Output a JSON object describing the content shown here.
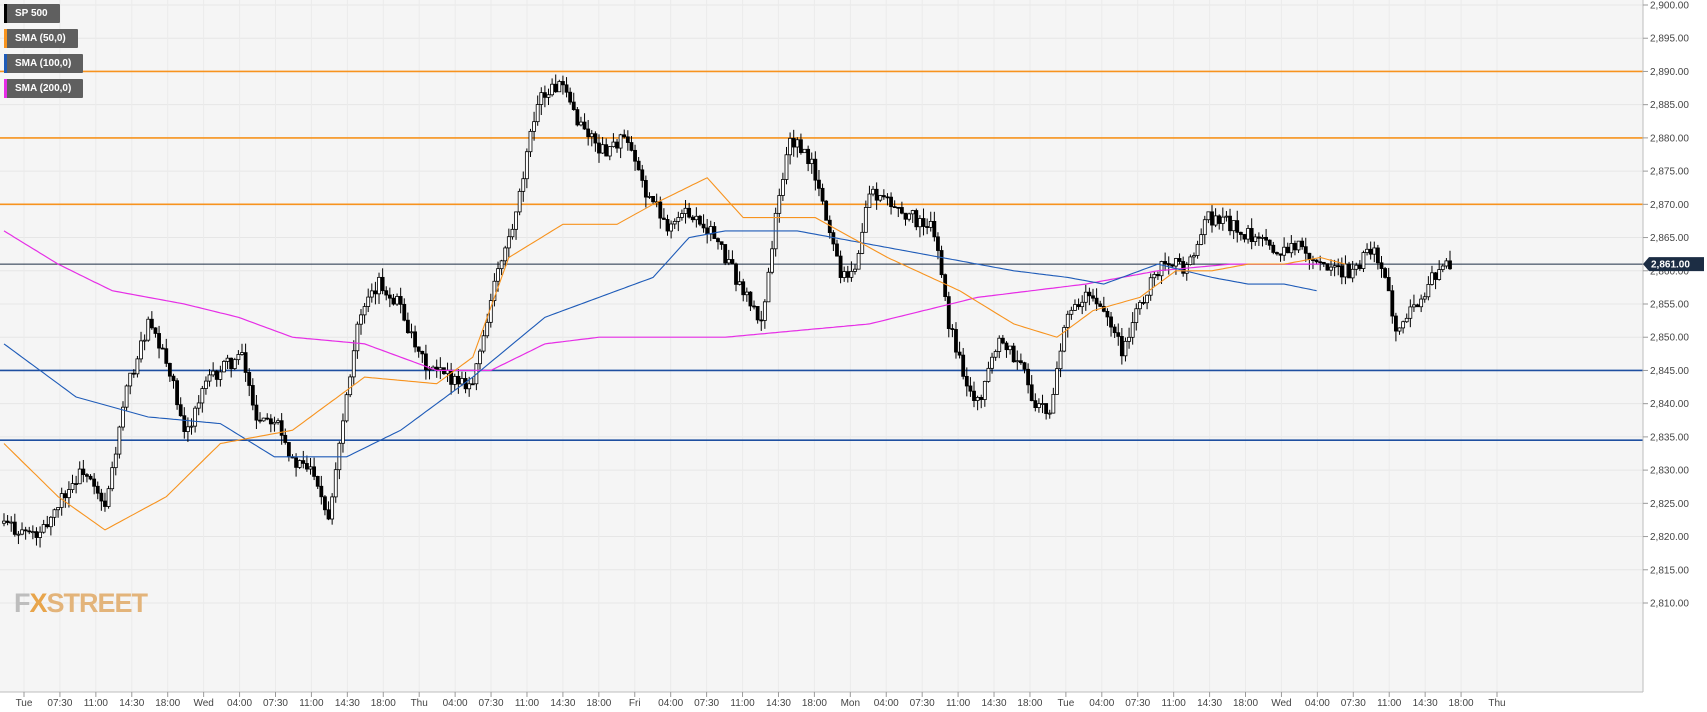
{
  "legend": [
    {
      "label": "SP 500",
      "color": "#000000"
    },
    {
      "label": "SMA (50,0)",
      "color": "#f7931e"
    },
    {
      "label": "SMA (100,0)",
      "color": "#1e5bb8"
    },
    {
      "label": "SMA (200,0)",
      "color": "#e62ee6"
    }
  ],
  "logo": {
    "fx": "F",
    "x": "X",
    "rest": "STREET"
  },
  "price_badge": "2,861.00",
  "chart_data": {
    "type": "candlestick",
    "title": "",
    "xlabel": "",
    "ylabel": "",
    "ylim": [
      2805,
      2900
    ],
    "y_ticks": [
      "2,810.00",
      "2,815.00",
      "2,820.00",
      "2,825.00",
      "2,830.00",
      "2,835.00",
      "2,840.00",
      "2,845.00",
      "2,850.00",
      "2,855.00",
      "2,860.00",
      "2,865.00",
      "2,870.00",
      "2,875.00",
      "2,880.00",
      "2,885.00",
      "2,890.00",
      "2,895.00",
      "2,900.00"
    ],
    "x_ticks": [
      "Tue",
      "07:30",
      "11:00",
      "14:30",
      "18:00",
      "Wed",
      "04:00",
      "07:30",
      "11:00",
      "14:30",
      "18:00",
      "Thu",
      "04:00",
      "07:30",
      "11:00",
      "14:30",
      "18:00",
      "Fri",
      "04:00",
      "07:30",
      "11:00",
      "14:30",
      "18:00",
      "Mon",
      "04:00",
      "07:30",
      "11:00",
      "14:30",
      "18:00",
      "Tue",
      "04:00",
      "07:30",
      "11:00",
      "14:30",
      "18:00",
      "Wed",
      "04:00",
      "07:30",
      "11:00",
      "14:30",
      "18:00",
      "Thu"
    ],
    "current_price": 2861.0,
    "horizontal_levels": [
      {
        "value": 2890,
        "color": "#f7931e"
      },
      {
        "value": 2880,
        "color": "#f7931e"
      },
      {
        "value": 2870,
        "color": "#f7931e"
      },
      {
        "value": 2845,
        "color": "#1e4fa0"
      },
      {
        "value": 2834.5,
        "color": "#1e4fa0"
      }
    ],
    "close_anchors": [
      [
        0,
        2822
      ],
      [
        4,
        2821
      ],
      [
        10,
        2820
      ],
      [
        16,
        2826
      ],
      [
        22,
        2830
      ],
      [
        28,
        2824
      ],
      [
        34,
        2842
      ],
      [
        40,
        2852
      ],
      [
        46,
        2845
      ],
      [
        50,
        2835
      ],
      [
        56,
        2843
      ],
      [
        62,
        2846
      ],
      [
        66,
        2847
      ],
      [
        70,
        2838
      ],
      [
        76,
        2838
      ],
      [
        80,
        2831
      ],
      [
        86,
        2830
      ],
      [
        90,
        2823
      ],
      [
        94,
        2838
      ],
      [
        98,
        2852
      ],
      [
        104,
        2858
      ],
      [
        110,
        2855
      ],
      [
        114,
        2848
      ],
      [
        118,
        2845
      ],
      [
        124,
        2844
      ],
      [
        130,
        2843
      ],
      [
        136,
        2858
      ],
      [
        142,
        2868
      ],
      [
        148,
        2886
      ],
      [
        154,
        2888
      ],
      [
        160,
        2882
      ],
      [
        166,
        2878
      ],
      [
        172,
        2880
      ],
      [
        178,
        2872
      ],
      [
        184,
        2867
      ],
      [
        190,
        2869
      ],
      [
        196,
        2866
      ],
      [
        200,
        2862
      ],
      [
        204,
        2858
      ],
      [
        210,
        2852
      ],
      [
        214,
        2868
      ],
      [
        218,
        2880
      ],
      [
        224,
        2876
      ],
      [
        228,
        2868
      ],
      [
        232,
        2860
      ],
      [
        236,
        2860
      ],
      [
        240,
        2872
      ],
      [
        246,
        2870
      ],
      [
        252,
        2868
      ],
      [
        258,
        2866
      ],
      [
        262,
        2852
      ],
      [
        266,
        2845
      ],
      [
        270,
        2840
      ],
      [
        276,
        2850
      ],
      [
        282,
        2846
      ],
      [
        286,
        2840
      ],
      [
        290,
        2838
      ],
      [
        294,
        2852
      ],
      [
        300,
        2856
      ],
      [
        306,
        2854
      ],
      [
        310,
        2848
      ],
      [
        316,
        2856
      ],
      [
        322,
        2862
      ],
      [
        328,
        2860
      ],
      [
        334,
        2868
      ],
      [
        340,
        2867
      ],
      [
        346,
        2865
      ],
      [
        352,
        2863
      ],
      [
        358,
        2864
      ],
      [
        364,
        2862
      ],
      [
        368,
        2860
      ],
      [
        374,
        2860
      ],
      [
        380,
        2864
      ],
      [
        386,
        2852
      ],
      [
        392,
        2855
      ],
      [
        396,
        2859
      ],
      [
        401,
        2861
      ]
    ],
    "sma_50_anchors": [
      [
        0,
        2834
      ],
      [
        15,
        2826
      ],
      [
        28,
        2821
      ],
      [
        45,
        2826
      ],
      [
        60,
        2834
      ],
      [
        80,
        2836
      ],
      [
        100,
        2844
      ],
      [
        120,
        2843
      ],
      [
        130,
        2847
      ],
      [
        140,
        2862
      ],
      [
        155,
        2867
      ],
      [
        170,
        2867
      ],
      [
        180,
        2870
      ],
      [
        195,
        2874
      ],
      [
        205,
        2868
      ],
      [
        225,
        2868
      ],
      [
        245,
        2862
      ],
      [
        265,
        2857
      ],
      [
        280,
        2852
      ],
      [
        292,
        2850
      ],
      [
        302,
        2854
      ],
      [
        315,
        2856
      ],
      [
        325,
        2860
      ],
      [
        335,
        2860
      ],
      [
        345,
        2861
      ],
      [
        355,
        2861
      ],
      [
        365,
        2862
      ],
      [
        372,
        2861
      ]
    ],
    "sma_100_anchors": [
      [
        0,
        2849
      ],
      [
        20,
        2841
      ],
      [
        40,
        2838
      ],
      [
        60,
        2837
      ],
      [
        75,
        2832
      ],
      [
        95,
        2832
      ],
      [
        110,
        2836
      ],
      [
        130,
        2844
      ],
      [
        150,
        2853
      ],
      [
        165,
        2856
      ],
      [
        180,
        2859
      ],
      [
        190,
        2865
      ],
      [
        200,
        2866
      ],
      [
        220,
        2866
      ],
      [
        240,
        2864
      ],
      [
        260,
        2862
      ],
      [
        280,
        2860
      ],
      [
        295,
        2859
      ],
      [
        305,
        2858
      ],
      [
        320,
        2861
      ],
      [
        335,
        2859
      ],
      [
        345,
        2858
      ],
      [
        355,
        2858
      ],
      [
        364,
        2857
      ]
    ],
    "sma_200_anchors": [
      [
        0,
        2866
      ],
      [
        15,
        2861
      ],
      [
        30,
        2857
      ],
      [
        50,
        2855
      ],
      [
        65,
        2853
      ],
      [
        80,
        2850
      ],
      [
        100,
        2849
      ],
      [
        120,
        2845
      ],
      [
        135,
        2845
      ],
      [
        150,
        2849
      ],
      [
        165,
        2850
      ],
      [
        180,
        2850
      ],
      [
        200,
        2850
      ],
      [
        220,
        2851
      ],
      [
        240,
        2852
      ],
      [
        255,
        2854
      ],
      [
        270,
        2856
      ],
      [
        285,
        2857
      ],
      [
        300,
        2858
      ],
      [
        320,
        2860
      ],
      [
        340,
        2861
      ],
      [
        355,
        2861
      ],
      [
        365,
        2861
      ]
    ]
  }
}
